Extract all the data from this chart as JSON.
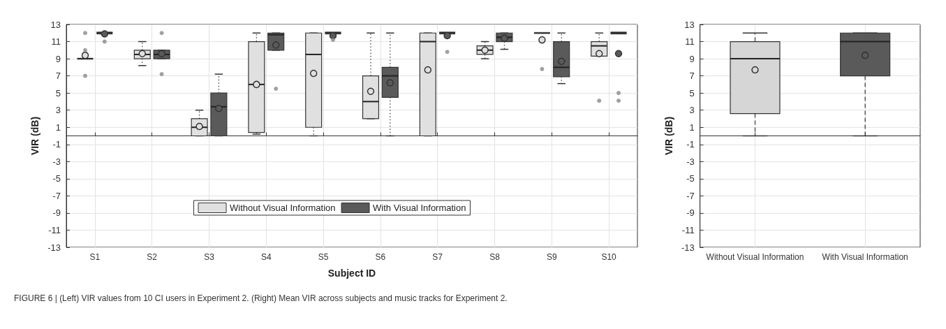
{
  "chart_data": [
    {
      "type": "box",
      "xlabel": "Subject ID",
      "ylabel": "VIR (dB)",
      "categories": [
        "S1",
        "S2",
        "S3",
        "S4",
        "S5",
        "S6",
        "S7",
        "S8",
        "S9",
        "S10"
      ],
      "ylim": [
        -13,
        13
      ],
      "yticks": [
        -13,
        -11,
        -9,
        -7,
        -5,
        -3,
        -1,
        1,
        3,
        5,
        7,
        9,
        11,
        13
      ],
      "grid": true,
      "legend": "bottom",
      "line_style": "dotted",
      "annotations": [
        "FIGURE 6 | (Left) VIR values from 10 CI users in Experiment 2. (Right) Mean VIR across subjects and music tracks for Experiment 2."
      ],
      "series": [
        {
          "name": "Without Visual Information",
          "color": "#e0e0e0",
          "boxes": [
            {
              "low": 9,
              "q1": 9,
              "median": 9,
              "q3": 9,
              "high": 9,
              "mean": 9.4,
              "outliers": [
                12,
                10,
                7
              ]
            },
            {
              "low": 8.2,
              "q1": 9,
              "median": 9.5,
              "q3": 10,
              "high": 11,
              "mean": 9.6
            },
            {
              "low": 0,
              "q1": 0,
              "median": 1,
              "q3": 2,
              "high": 3,
              "mean": 1.1
            },
            {
              "low": 0.2,
              "q1": 0.4,
              "median": 6,
              "q3": 11,
              "high": 12,
              "mean": 6
            },
            {
              "low": 0,
              "q1": 1,
              "median": 9.5,
              "q3": 12,
              "high": 12,
              "mean": 7.3
            },
            {
              "low": 2,
              "q1": 2,
              "median": 4,
              "q3": 7,
              "high": 12,
              "mean": 5.2
            },
            {
              "low": 0,
              "q1": 0,
              "median": 11,
              "q3": 12,
              "high": 12,
              "mean": 7.7
            },
            {
              "low": 9,
              "q1": 9.5,
              "median": 10,
              "q3": 10.5,
              "high": 11,
              "mean": 10
            },
            {
              "low": 12,
              "q1": 12,
              "median": 12,
              "q3": 12,
              "high": 12,
              "mean": 11.2,
              "outliers": [
                7.8
              ]
            },
            {
              "low": 9.3,
              "q1": 9.3,
              "median": 10.5,
              "q3": 11,
              "high": 12,
              "mean": 9.6,
              "outliers": [
                4.1
              ]
            }
          ]
        },
        {
          "name": "With Visual Information",
          "color": "#5a5a5a",
          "boxes": [
            {
              "low": 12,
              "q1": 12,
              "median": 12,
              "q3": 12,
              "high": 12,
              "mean": 11.9,
              "outliers": [
                11
              ]
            },
            {
              "low": 9,
              "q1": 9,
              "median": 9.5,
              "q3": 10,
              "high": 10,
              "mean": 9.6,
              "outliers": [
                12,
                7.2
              ]
            },
            {
              "low": 0,
              "q1": 0,
              "median": 3.4,
              "q3": 5,
              "high": 7.2,
              "mean": 3.2
            },
            {
              "low": 10,
              "q1": 10,
              "median": 11.8,
              "q3": 12,
              "high": 12,
              "mean": 10.6,
              "outliers": [
                5.5
              ]
            },
            {
              "low": 12,
              "q1": 12,
              "median": 12,
              "q3": 12,
              "high": 12,
              "mean": 11.7,
              "outliers": [
                11.2
              ]
            },
            {
              "low": 0,
              "q1": 4.5,
              "median": 7,
              "q3": 8,
              "high": 12,
              "mean": 6.2
            },
            {
              "low": 12,
              "q1": 12,
              "median": 12,
              "q3": 12,
              "high": 12,
              "mean": 11.7,
              "outliers": [
                9.8
              ]
            },
            {
              "low": 10.1,
              "q1": 11,
              "median": 11.5,
              "q3": 12,
              "high": 12,
              "mean": 11.4
            },
            {
              "low": 6.1,
              "q1": 6.9,
              "median": 8,
              "q3": 11,
              "high": 12,
              "mean": 8.7
            },
            {
              "low": 12,
              "q1": 12,
              "median": 12,
              "q3": 12,
              "high": 12,
              "mean": 9.6,
              "outliers": [
                5,
                4.1
              ]
            }
          ]
        }
      ]
    },
    {
      "type": "box",
      "ylabel": "VIR (dB)",
      "categories": [
        "Without Visual Information",
        "With Visual Information"
      ],
      "ylim": [
        -13,
        13
      ],
      "yticks": [
        -13,
        -11,
        -9,
        -7,
        -5,
        -3,
        -1,
        1,
        3,
        5,
        7,
        9,
        11,
        13
      ],
      "grid": true,
      "line_style": "dashed",
      "colors": [
        "#d6d6d6",
        "#5a5a5a"
      ],
      "boxes": [
        {
          "low": 0,
          "q1": 2.6,
          "median": 9,
          "q3": 11,
          "high": 12,
          "mean": 7.7
        },
        {
          "low": 0,
          "q1": 7,
          "median": 11,
          "q3": 12,
          "high": 12,
          "mean": 9.4
        }
      ]
    }
  ]
}
